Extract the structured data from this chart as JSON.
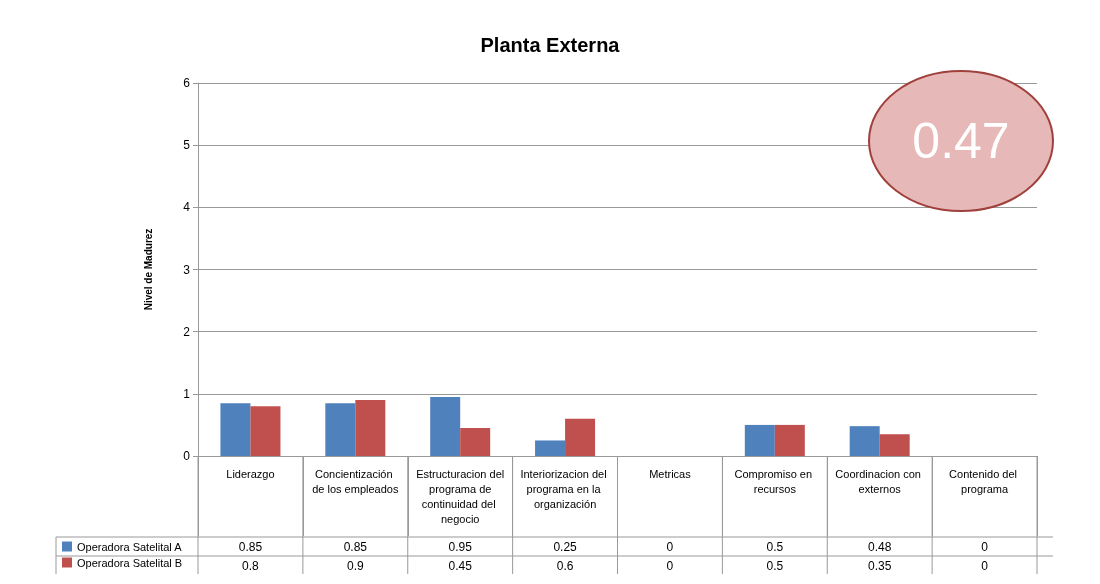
{
  "chart_data": {
    "type": "bar",
    "title": "Planta Externa",
    "ylabel": "Nivel de Madurez",
    "categories": [
      "Liderazgo",
      "Concientización de los empleados",
      "Estructuracion del programa de continuidad del negocio",
      "Interiorizacion del programa en la organización",
      "Metricas",
      "Compromiso en recursos",
      "Coordinacion con externos",
      "Contenido del programa"
    ],
    "series": [
      {
        "name": "Operadora Satelital A",
        "color": "#4f81bd",
        "values": [
          0.85,
          0.85,
          0.95,
          0.25,
          0,
          0.5,
          0.48,
          0
        ]
      },
      {
        "name": "Operadora Satelital B",
        "color": "#c0504d",
        "values": [
          0.8,
          0.9,
          0.45,
          0.6,
          0,
          0.5,
          0.35,
          0
        ]
      }
    ],
    "ylim": [
      0,
      6
    ],
    "yticks": [
      0,
      1,
      2,
      3,
      4,
      5,
      6
    ],
    "grid": "y",
    "legend": "bottom left",
    "data_labels": true,
    "annotations": [
      "0.47"
    ]
  }
}
